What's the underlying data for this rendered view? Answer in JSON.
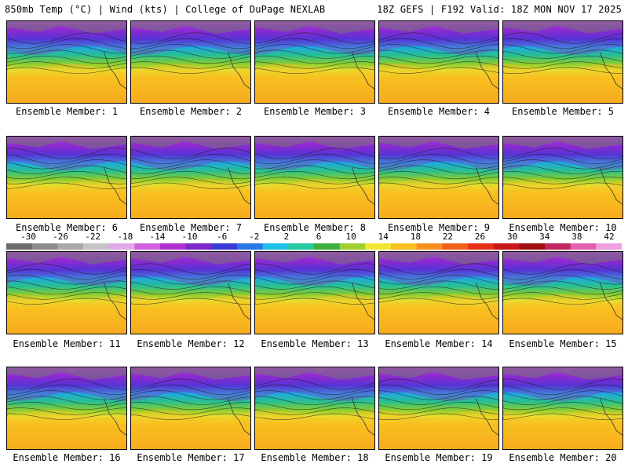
{
  "header": {
    "left": "850mb Temp (°C) | Wind (kts) | College of DuPage NEXLAB",
    "right": "18Z GEFS | F192 Valid: 18Z MON NOV 17 2025"
  },
  "members": [
    {
      "label": "Ensemble Member: 1"
    },
    {
      "label": "Ensemble Member: 2"
    },
    {
      "label": "Ensemble Member: 3"
    },
    {
      "label": "Ensemble Member: 4"
    },
    {
      "label": "Ensemble Member: 5"
    },
    {
      "label": "Ensemble Member: 6"
    },
    {
      "label": "Ensemble Member: 7"
    },
    {
      "label": "Ensemble Member: 8"
    },
    {
      "label": "Ensemble Member: 9"
    },
    {
      "label": "Ensemble Member: 10"
    },
    {
      "label": "Ensemble Member: 11"
    },
    {
      "label": "Ensemble Member: 12"
    },
    {
      "label": "Ensemble Member: 13"
    },
    {
      "label": "Ensemble Member: 14"
    },
    {
      "label": "Ensemble Member: 15"
    },
    {
      "label": "Ensemble Member: 16"
    },
    {
      "label": "Ensemble Member: 17"
    },
    {
      "label": "Ensemble Member: 18"
    },
    {
      "label": "Ensemble Member: 19"
    },
    {
      "label": "Ensemble Member: 20"
    }
  ],
  "colorbar": {
    "ticks": [
      "-30",
      "-26",
      "-22",
      "-18",
      "-14",
      "-10",
      "-6",
      "-2",
      "2",
      "6",
      "10",
      "14",
      "18",
      "22",
      "26",
      "30",
      "34",
      "38",
      "42"
    ],
    "colors": [
      "#6b6b6b",
      "#8c8c8c",
      "#a8a8a8",
      "#c4c4c4",
      "#e0a8e8",
      "#d060e0",
      "#b030d0",
      "#7a28c8",
      "#3a3ad8",
      "#2a78e8",
      "#20c0e8",
      "#28c8a0",
      "#40b040",
      "#a0d030",
      "#f0e830",
      "#f8c020",
      "#f89020",
      "#f06018",
      "#e83018",
      "#c81818",
      "#a01010",
      "#c02860",
      "#e060b0",
      "#f0a0e0"
    ]
  }
}
